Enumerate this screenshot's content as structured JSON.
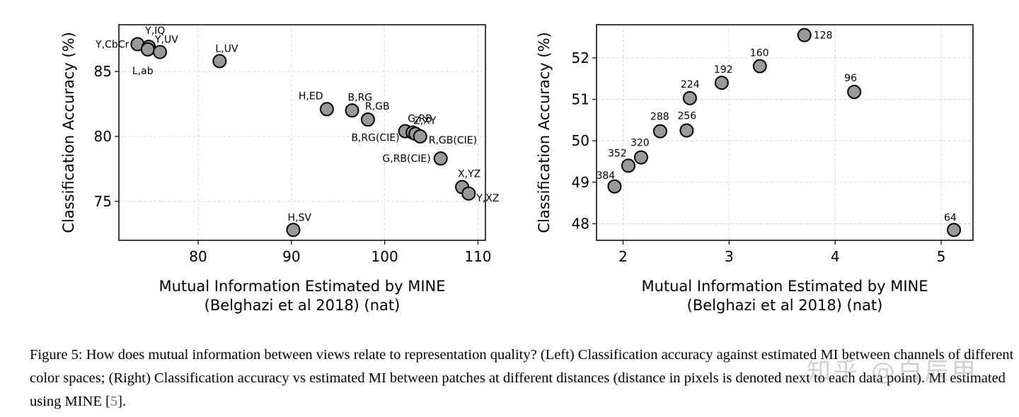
{
  "chart_data": [
    {
      "type": "scatter",
      "xlabel": "Mutual Information Estimated by MINE",
      "xlabel2": "(Belghazi et al 2018) (nat)",
      "ylabel": "Classification Accuracy (%)",
      "xlim": [
        71.5,
        110.8
      ],
      "ylim": [
        72.0,
        88.6
      ],
      "xticks": [
        80,
        90,
        100,
        110
      ],
      "yticks": [
        75,
        80,
        85
      ],
      "grid": true,
      "points": [
        {
          "label": "Y,CbCr",
          "x": 73.5,
          "y": 87.1
        },
        {
          "label": "Y,IQ",
          "x": 74.7,
          "y": 86.9
        },
        {
          "label": "L,ab",
          "x": 74.6,
          "y": 86.7
        },
        {
          "label": "Y,UV",
          "x": 75.9,
          "y": 86.5
        },
        {
          "label": "L,UV",
          "x": 82.3,
          "y": 85.8
        },
        {
          "label": "H,ED",
          "x": 93.8,
          "y": 82.1
        },
        {
          "label": "B,RG",
          "x": 96.5,
          "y": 82.0
        },
        {
          "label": "R,GB",
          "x": 98.2,
          "y": 81.3
        },
        {
          "label": "B,RG(CIE)",
          "x": 102.2,
          "y": 80.4
        },
        {
          "label": "G,RB",
          "x": 103.0,
          "y": 80.3
        },
        {
          "label": "Z,XY",
          "x": 103.3,
          "y": 80.2
        },
        {
          "label": "R,GB(CIE)",
          "x": 103.8,
          "y": 80.0
        },
        {
          "label": "G,RB(CIE)",
          "x": 106.0,
          "y": 78.3
        },
        {
          "label": "X,YZ",
          "x": 108.3,
          "y": 76.1
        },
        {
          "label": "Y,XZ",
          "x": 109.0,
          "y": 75.6
        },
        {
          "label": "H,SV",
          "x": 90.2,
          "y": 72.8
        }
      ]
    },
    {
      "type": "scatter",
      "xlabel": "Mutual Information Estimated by MINE",
      "xlabel2": "(Belghazi et al 2018) (nat)",
      "ylabel": "Classification Accuracy (%)",
      "xlim": [
        1.75,
        5.3
      ],
      "ylim": [
        47.6,
        52.8
      ],
      "xticks": [
        2,
        3,
        4,
        5
      ],
      "yticks": [
        48,
        49,
        50,
        51,
        52
      ],
      "grid": true,
      "points": [
        {
          "label": "384",
          "x": 1.92,
          "y": 48.9
        },
        {
          "label": "352",
          "x": 2.05,
          "y": 49.4
        },
        {
          "label": "320",
          "x": 2.17,
          "y": 49.6
        },
        {
          "label": "288",
          "x": 2.35,
          "y": 50.23
        },
        {
          "label": "256",
          "x": 2.6,
          "y": 50.25
        },
        {
          "label": "224",
          "x": 2.63,
          "y": 51.03
        },
        {
          "label": "192",
          "x": 2.93,
          "y": 51.4
        },
        {
          "label": "160",
          "x": 3.29,
          "y": 51.8
        },
        {
          "label": "128",
          "x": 3.71,
          "y": 52.55
        },
        {
          "label": "96",
          "x": 4.18,
          "y": 51.18
        },
        {
          "label": "64",
          "x": 5.12,
          "y": 47.85
        }
      ]
    }
  ],
  "caption": {
    "lead": "Figure 5:",
    "body": " How does mutual information between views relate to representation quality? (Left) Classification accuracy against estimated MI between channels of different color spaces; (Right) Classification accuracy vs estimated MI between patches at different distances (distance in pixels is denoted next to each data point). MI estimated using MINE [",
    "cite": "5",
    "tail": "]."
  },
  "watermark": "知乎 @白辰甲",
  "colors": {
    "marker_fill": "#999999",
    "marker_edge": "#000000",
    "grid": "#d8d8d8"
  }
}
